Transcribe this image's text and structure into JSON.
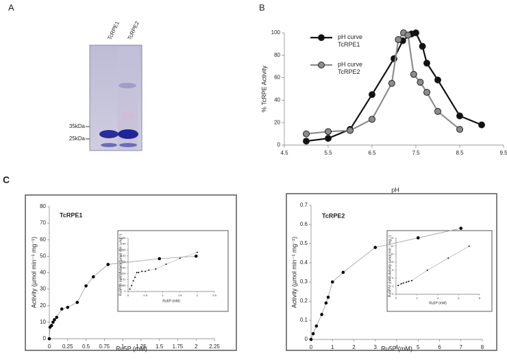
{
  "panel_labels": [
    "A",
    "B",
    "C"
  ],
  "gel": {
    "lanes": [
      "TcRPE1",
      "TcRPE2"
    ],
    "markers": [
      "35kDa",
      "25kDa"
    ]
  },
  "chart_data": [
    {
      "type": "line",
      "xlabel": "pH",
      "ylabel": "% TcRPE Activity",
      "xlim": [
        4.5,
        9.5
      ],
      "xticks": [
        4.5,
        5.5,
        6.5,
        7.5,
        8.5,
        9.5
      ],
      "ylim": [
        0,
        100
      ],
      "yticks": [
        0,
        20,
        40,
        60,
        80,
        100
      ],
      "legend": "upper left",
      "series": [
        {
          "name": "pH curve TcRPE1",
          "color": "#111111",
          "x": [
            5,
            5.5,
            6,
            6.5,
            7,
            7.2,
            7.4,
            7.5,
            7.65,
            7.75,
            8,
            8.5,
            9
          ],
          "values": [
            3.5,
            6,
            14,
            45,
            77,
            93,
            99,
            100,
            88,
            73,
            58,
            26,
            18
          ]
        },
        {
          "name": "pH curve TcRPE2",
          "color": "#8c8c8c",
          "x": [
            5,
            5.5,
            6,
            6.5,
            6.95,
            7.1,
            7.22,
            7.32,
            7.45,
            7.6,
            7.75,
            8,
            8.5
          ],
          "values": [
            10,
            12,
            13,
            23,
            55,
            94,
            100,
            98,
            63,
            56,
            47,
            30,
            14
          ]
        }
      ]
    },
    {
      "type": "line",
      "title": "TcRPE1",
      "xlabel": "Ru5P (mM)",
      "ylabel": "Activity (µmol min⁻¹ mg⁻¹)",
      "xlim": [
        0,
        2.25
      ],
      "xticks": [
        0,
        0.25,
        0.5,
        0.75,
        1,
        1.25,
        1.5,
        1.75,
        2,
        2.25
      ],
      "ylim": [
        0,
        80
      ],
      "yticks": [
        0,
        10,
        20,
        30,
        40,
        50,
        60,
        70,
        80
      ],
      "series": [
        {
          "color": "#000000",
          "line_color": "#999999",
          "x": [
            0,
            0.01,
            0.03,
            0.05,
            0.07,
            0.1,
            0.17,
            0.25,
            0.38,
            0.5,
            0.6,
            0.8,
            1.5,
            2
          ],
          "values": [
            0,
            7,
            8,
            10,
            11.5,
            13,
            18,
            19,
            22,
            32,
            37.5,
            45,
            48.5,
            50
          ]
        }
      ]
    },
    {
      "type": "line",
      "xlabel": "Ru5P (mM)",
      "ylabel": "Ru5P/Vi (mM) Activity (µmol min⁻¹ mg⁻¹)",
      "xlim": [
        0,
        2.5
      ],
      "xticks": [
        0,
        0.5,
        1,
        1.5,
        2,
        2.5
      ],
      "ylim": [
        0,
        0.045
      ],
      "yticks": [
        0,
        0.005,
        0.01,
        0.015,
        0.02,
        0.025,
        0.03,
        0.035,
        0.04,
        0.045
      ],
      "series": [
        {
          "color": "#000000",
          "line_color": "#999999",
          "x": [
            0.05,
            0.1,
            0.15,
            0.2,
            0.25,
            0.3,
            0.4,
            0.5,
            0.6,
            0.8,
            1.1,
            1.5,
            2
          ],
          "values": [
            0.002,
            0.005,
            0.009,
            0.012,
            0.016,
            0.016,
            0.017,
            0.017,
            0.018,
            0.019,
            0.023,
            0.028,
            0.033
          ]
        }
      ]
    },
    {
      "type": "line",
      "title": "TcRPE2",
      "xlabel": "Ru5P (mM)",
      "ylabel": "Activity (µmol min⁻¹ mg⁻¹)",
      "xlim": [
        0,
        8
      ],
      "xticks": [
        0,
        1,
        2,
        3,
        4,
        5,
        6,
        7,
        8
      ],
      "ylim": [
        0,
        0.7
      ],
      "yticks": [
        0,
        0.1,
        0.2,
        0.3,
        0.4,
        0.5,
        0.6,
        0.7
      ],
      "series": [
        {
          "color": "#000000",
          "line_color": "#999999",
          "x": [
            0,
            0.1,
            0.25,
            0.5,
            0.7,
            0.8,
            1,
            1.5,
            3,
            5,
            7
          ],
          "values": [
            0,
            0.03,
            0.07,
            0.13,
            0.19,
            0.22,
            0.3,
            0.35,
            0.48,
            0.53,
            0.58
          ]
        }
      ]
    },
    {
      "type": "line",
      "xlabel": "Ru5P (mM)",
      "ylabel": "Ru5P/Vi (mM) Activity (µmol min⁻¹ mg⁻¹)",
      "xlim": [
        0,
        8
      ],
      "xticks": [
        0,
        2,
        4,
        6,
        8
      ],
      "ylim": [
        0,
        14
      ],
      "yticks": [
        0,
        2,
        4,
        6,
        8,
        10,
        12,
        14
      ],
      "series": [
        {
          "color": "#000000",
          "line_color": "#777777",
          "x": [
            0.2,
            0.5,
            0.7,
            1,
            1.2,
            1.5,
            3,
            5,
            7
          ],
          "values": [
            2.2,
            2.6,
            2.8,
            3,
            3.2,
            3.4,
            6,
            9,
            12
          ]
        }
      ]
    }
  ]
}
